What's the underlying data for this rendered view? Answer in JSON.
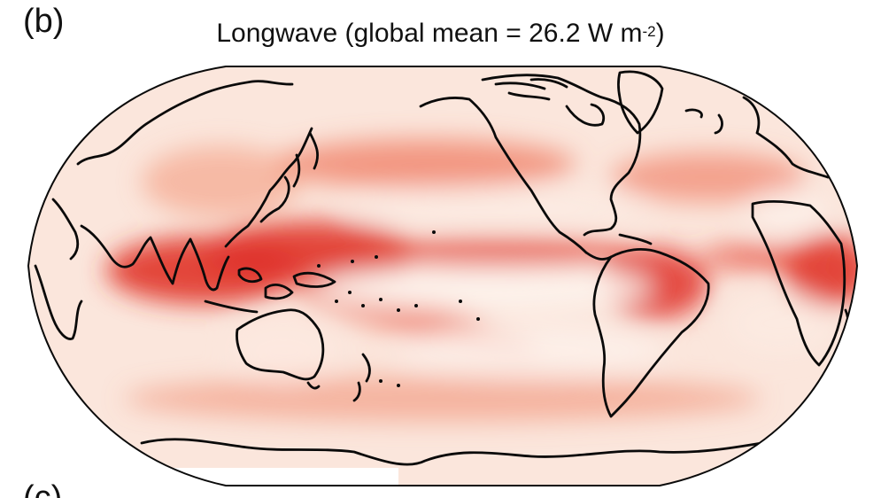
{
  "panel_label": "(b)",
  "title": {
    "prefix": "Longwave (global mean = 26.2 W m",
    "superscript": "-2",
    "suffix": ")"
  },
  "next_panel_label": "(c)",
  "colors": {
    "low": "#fdf2ec",
    "mid": "#f4a58a",
    "high": "#e0332a",
    "coastline": "#0a0a0a"
  },
  "projection": "Robinson, centered on Pacific"
}
